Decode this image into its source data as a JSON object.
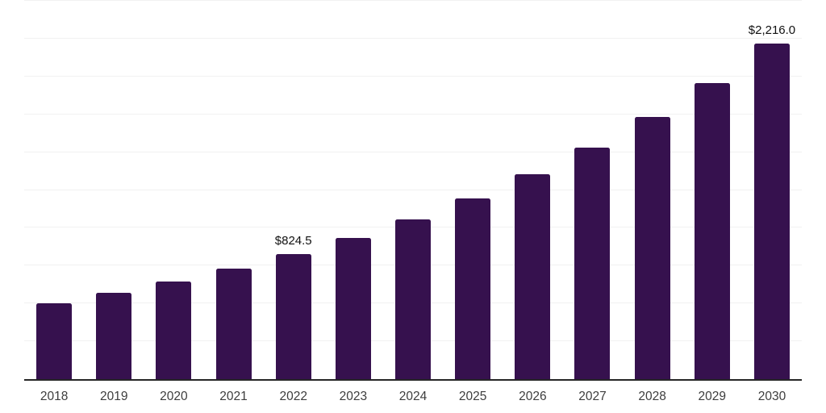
{
  "chart_data": {
    "type": "bar",
    "title": "",
    "xlabel": "",
    "ylabel": "",
    "categories": [
      "2018",
      "2019",
      "2020",
      "2021",
      "2022",
      "2023",
      "2024",
      "2025",
      "2026",
      "2027",
      "2028",
      "2029",
      "2030"
    ],
    "values": [
      502.9,
      569.1,
      643.9,
      728.7,
      824.5,
      933.0,
      1055.7,
      1194.6,
      1351.7,
      1529.6,
      1730.8,
      1958.4,
      2216.0
    ],
    "value_labels": [
      "",
      "",
      "",
      "",
      "$824.5",
      "",
      "",
      "",
      "",
      "",
      "",
      "",
      "$2,216.0"
    ],
    "labeled_points": [
      {
        "category": "2022",
        "label": "$824.5"
      },
      {
        "category": "2030",
        "label": "$2,216.0"
      }
    ],
    "ylim": [
      0,
      2500
    ],
    "gridline_step": 250,
    "y_tick_labels_visible": false,
    "grid": "horizontal",
    "legend": "none",
    "colors": {
      "bar": "#36114E",
      "axis_line": "#262626",
      "gridline": "#f1f1f1",
      "value_label": "#111111",
      "tick_label": "#3d3d3d",
      "background": "#ffffff"
    }
  }
}
